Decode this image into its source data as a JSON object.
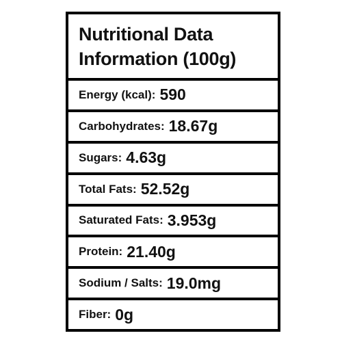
{
  "header": {
    "title_lines": [
      "Nutritional Data",
      "Information (100g)"
    ]
  },
  "rows": [
    {
      "label": "Energy (kcal):",
      "value": "590"
    },
    {
      "label": "Carbohydrates:",
      "value": "18.67g"
    },
    {
      "label": "Sugars:",
      "value": "4.63g"
    },
    {
      "label": "Total Fats:",
      "value": "52.52g"
    },
    {
      "label": "Saturated Fats:",
      "value": "3.953g"
    },
    {
      "label": "Protein:",
      "value": "21.40g"
    },
    {
      "label": "Sodium / Salts:",
      "value": "19.0mg"
    },
    {
      "label": "Fiber:",
      "value": "0g"
    }
  ]
}
